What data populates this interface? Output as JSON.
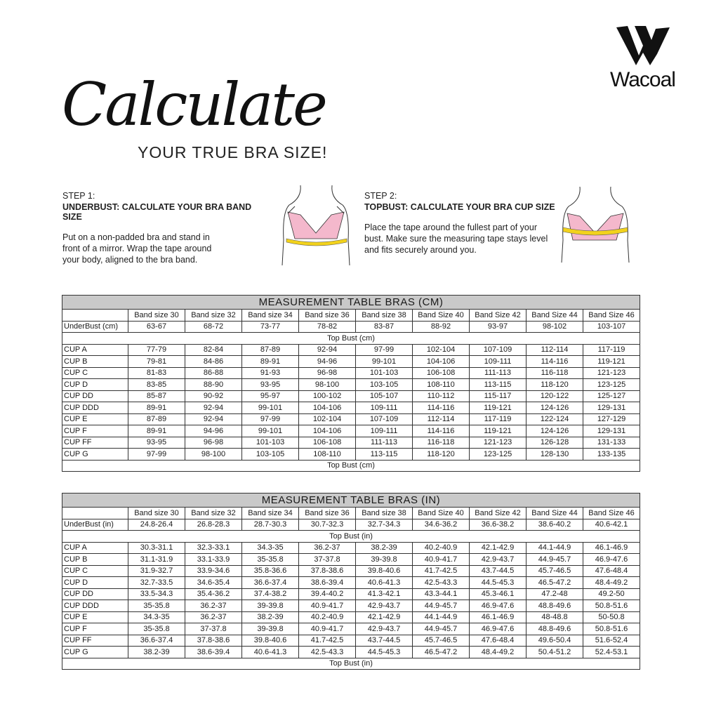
{
  "brand": {
    "name": "Wacoal"
  },
  "heading": {
    "script": "Calculate",
    "subtitle": "YOUR TRUE BRA SIZE!"
  },
  "steps": [
    {
      "number": "STEP 1:",
      "title": "UNDERBUST: CALCULATE YOUR BRA BAND SIZE",
      "text": "Put on a non-padded bra and stand in front of a mirror. Wrap the tape around your body, aligned to the bra band."
    },
    {
      "number": "STEP 2:",
      "title": "TOPBUST: CALCULATE YOUR BRA CUP SIZE",
      "text": "Place the tape around the fullest part of your bust. Make sure the measuring tape stays level and fits securely around you."
    }
  ],
  "colors": {
    "header_bg": "#c9c9c9",
    "bra_pink": "#f4b8cc",
    "tape_yellow": "#f2d21c"
  },
  "tables": [
    {
      "title": "MEASUREMENT TABLE BRAS (CM)",
      "columns": [
        "Band size 30",
        "Band size 32",
        "Band size 34",
        "Band size 36",
        "Band size 38",
        "Band Size 40",
        "Band Size 42",
        "Band Size 44",
        "Band Size 46"
      ],
      "underbust_label": "UnderBust (cm)",
      "underbust": [
        "63-67",
        "68-72",
        "73-77",
        "78-82",
        "83-87",
        "88-92",
        "93-97",
        "98-102",
        "103-107"
      ],
      "topbust_label": "Top Bust (cm)",
      "rows": [
        {
          "cup": "CUP A",
          "values": [
            "77-79",
            "82-84",
            "87-89",
            "92-94",
            "97-99",
            "102-104",
            "107-109",
            "112-114",
            "117-119"
          ]
        },
        {
          "cup": "CUP B",
          "values": [
            "79-81",
            "84-86",
            "89-91",
            "94-96",
            "99-101",
            "104-106",
            "109-111",
            "114-116",
            "119-121"
          ]
        },
        {
          "cup": "CUP C",
          "values": [
            "81-83",
            "86-88",
            "91-93",
            "96-98",
            "101-103",
            "106-108",
            "111-113",
            "116-118",
            "121-123"
          ]
        },
        {
          "cup": "CUP D",
          "values": [
            "83-85",
            "88-90",
            "93-95",
            "98-100",
            "103-105",
            "108-110",
            "113-115",
            "118-120",
            "123-125"
          ]
        },
        {
          "cup": "CUP DD",
          "values": [
            "85-87",
            "90-92",
            "95-97",
            "100-102",
            "105-107",
            "110-112",
            "115-117",
            "120-122",
            "125-127"
          ]
        },
        {
          "cup": "CUP DDD",
          "values": [
            "89-91",
            "92-94",
            "99-101",
            "104-106",
            "109-111",
            "114-116",
            "119-121",
            "124-126",
            "129-131"
          ]
        },
        {
          "cup": "CUP E",
          "values": [
            "87-89",
            "92-94",
            "97-99",
            "102-104",
            "107-109",
            "112-114",
            "117-119",
            "122-124",
            "127-129"
          ]
        },
        {
          "cup": "CUP F",
          "values": [
            "89-91",
            "94-96",
            "99-101",
            "104-106",
            "109-111",
            "114-116",
            "119-121",
            "124-126",
            "129-131"
          ]
        },
        {
          "cup": "CUP FF",
          "values": [
            "93-95",
            "96-98",
            "101-103",
            "106-108",
            "111-113",
            "116-118",
            "121-123",
            "126-128",
            "131-133"
          ]
        },
        {
          "cup": "CUP G",
          "values": [
            "97-99",
            "98-100",
            "103-105",
            "108-110",
            "113-115",
            "118-120",
            "123-125",
            "128-130",
            "133-135"
          ]
        }
      ]
    },
    {
      "title": "MEASUREMENT TABLE BRAS (IN)",
      "columns": [
        "Band size 30",
        "Band size 32",
        "Band size 34",
        "Band size 36",
        "Band size 38",
        "Band Size 40",
        "Band Size 42",
        "Band Size 44",
        "Band Size 46"
      ],
      "underbust_label": "UnderBust (in)",
      "underbust": [
        "24.8-26.4",
        "26.8-28.3",
        "28.7-30.3",
        "30.7-32.3",
        "32.7-34.3",
        "34.6-36.2",
        "36.6-38.2",
        "38.6-40.2",
        "40.6-42.1"
      ],
      "topbust_label": "Top Bust (in)",
      "rows": [
        {
          "cup": "CUP A",
          "values": [
            "30.3-31.1",
            "32.3-33.1",
            "34.3-35",
            "36.2-37",
            "38.2-39",
            "40.2-40.9",
            "42.1-42.9",
            "44.1-44.9",
            "46.1-46.9"
          ]
        },
        {
          "cup": "CUP B",
          "values": [
            "31.1-31.9",
            "33.1-33.9",
            "35-35.8",
            "37-37.8",
            "39-39.8",
            "40.9-41.7",
            "42.9-43.7",
            "44.9-45.7",
            "46.9-47.6"
          ]
        },
        {
          "cup": "CUP C",
          "values": [
            "31.9-32.7",
            "33.9-34.6",
            "35.8-36.6",
            "37.8-38.6",
            "39.8-40.6",
            "41.7-42.5",
            "43.7-44.5",
            "45.7-46.5",
            "47.6-48.4"
          ]
        },
        {
          "cup": "CUP D",
          "values": [
            "32.7-33.5",
            "34.6-35.4",
            "36.6-37.4",
            "38.6-39.4",
            "40.6-41.3",
            "42.5-43.3",
            "44.5-45.3",
            "46.5-47.2",
            "48.4-49.2"
          ]
        },
        {
          "cup": "CUP DD",
          "values": [
            "33.5-34.3",
            "35.4-36.2",
            "37.4-38.2",
            "39.4-40.2",
            "41.3-42.1",
            "43.3-44.1",
            "45.3-46.1",
            "47.2-48",
            "49.2-50"
          ]
        },
        {
          "cup": "CUP DDD",
          "values": [
            "35-35.8",
            "36.2-37",
            "39-39.8",
            "40.9-41.7",
            "42.9-43.7",
            "44.9-45.7",
            "46.9-47.6",
            "48.8-49.6",
            "50.8-51.6"
          ]
        },
        {
          "cup": "CUP E",
          "values": [
            "34.3-35",
            "36.2-37",
            "38.2-39",
            "40.2-40.9",
            "42.1-42.9",
            "44.1-44.9",
            "46.1-46.9",
            "48-48.8",
            "50-50.8"
          ]
        },
        {
          "cup": "CUP F",
          "values": [
            "35-35.8",
            "37-37.8",
            "39-39.8",
            "40.9-41.7",
            "42.9-43.7",
            "44.9-45.7",
            "46.9-47.6",
            "48.8-49.6",
            "50.8-51.6"
          ]
        },
        {
          "cup": "CUP FF",
          "values": [
            "36.6-37.4",
            "37.8-38.6",
            "39.8-40.6",
            "41.7-42.5",
            "43.7-44.5",
            "45.7-46.5",
            "47.6-48.4",
            "49.6-50.4",
            "51.6-52.4"
          ]
        },
        {
          "cup": "CUP G",
          "values": [
            "38.2-39",
            "38.6-39.4",
            "40.6-41.3",
            "42.5-43.3",
            "44.5-45.3",
            "46.5-47.2",
            "48.4-49.2",
            "50.4-51.2",
            "52.4-53.1"
          ]
        }
      ]
    }
  ]
}
